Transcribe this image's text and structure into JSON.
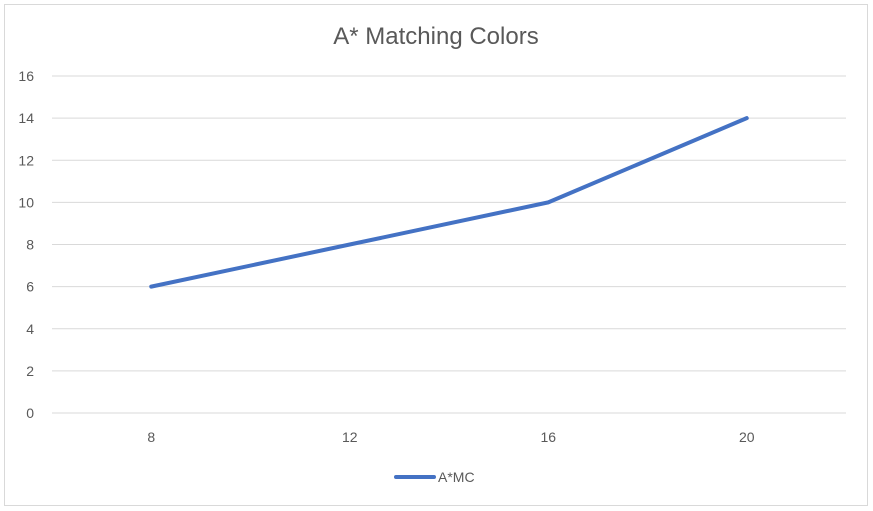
{
  "chart_data": {
    "type": "line",
    "title": "A* Matching Colors",
    "categories": [
      "8",
      "12",
      "16",
      "20"
    ],
    "series": [
      {
        "name": "A*MC",
        "values": [
          6,
          8,
          10,
          14
        ],
        "color": "#4472c4"
      }
    ],
    "ylim": [
      0,
      16
    ],
    "yticks": [
      0,
      2,
      4,
      6,
      8,
      10,
      12,
      14,
      16
    ],
    "grid": true,
    "gridColor": "#d9d9d9",
    "legend": "bottom"
  }
}
